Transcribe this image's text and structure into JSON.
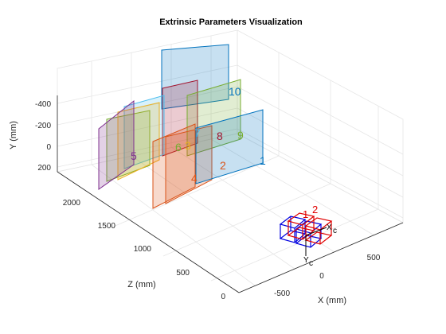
{
  "chart_data": {
    "type": "3d-scatter",
    "title": "Extrinsic Parameters Visualization",
    "xlabel": "X (mm)",
    "ylabel": "Y (mm)",
    "zlabel": "Z (mm)",
    "xticks": [
      -500,
      0,
      500
    ],
    "yticks": [
      -400,
      -200,
      0,
      200
    ],
    "zticks": [
      0,
      500,
      1000,
      1500,
      2000
    ],
    "grid": true,
    "colors": [
      "#0072BD",
      "#D95319",
      "#EDB120",
      "#7E2F8E",
      "#77AC30",
      "#4DBEEE",
      "#A2142F"
    ],
    "planes": [
      {
        "label": "1",
        "color": "#0072BD"
      },
      {
        "label": "2",
        "color": "#D95319"
      },
      {
        "label": "3",
        "color": "#EDB120"
      },
      {
        "label": "4",
        "color": "#D95319"
      },
      {
        "label": "5",
        "color": "#7E2F8E"
      },
      {
        "label": "6",
        "color": "#77AC30"
      },
      {
        "label": "7",
        "color": "#4DBEEE"
      },
      {
        "label": "8",
        "color": "#A2142F"
      },
      {
        "label": "9",
        "color": "#77AC30"
      },
      {
        "label": "10",
        "color": "#0072BD"
      }
    ],
    "camera": {
      "labels": [
        "1",
        "2"
      ],
      "axis_x": "X",
      "axis_x_sub": "c",
      "axis_y": "Y",
      "axis_y_sub": "c",
      "colors": [
        "#0000e0",
        "#e00000"
      ]
    }
  }
}
